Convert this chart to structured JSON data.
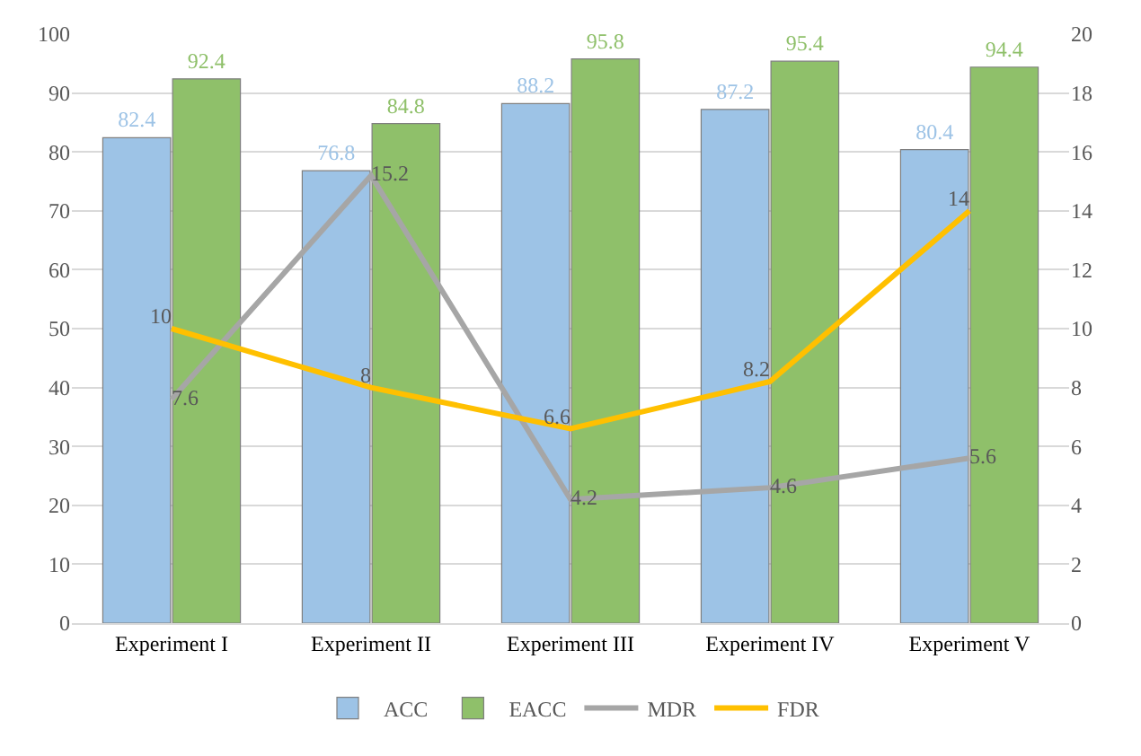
{
  "chart_data": {
    "type": "bar",
    "categories": [
      "Experiment I",
      "Experiment II",
      "Experiment III",
      "Experiment IV",
      "Experiment V"
    ],
    "series": [
      {
        "name": "ACC",
        "color": "#9dc3e6",
        "values": [
          82.4,
          76.8,
          88.2,
          87.2,
          80.4
        ]
      },
      {
        "name": "EACC",
        "color": "#8fc06a",
        "values": [
          92.4,
          84.8,
          95.8,
          95.4,
          94.4
        ]
      },
      {
        "name": "MDR",
        "type": "line",
        "axis": "y2",
        "color": "#a6a6a6",
        "values": [
          7.6,
          15.2,
          4.2,
          4.6,
          5.6
        ]
      },
      {
        "name": "FDR",
        "type": "line",
        "axis": "y2",
        "color": "#ffc000",
        "values": [
          10,
          8,
          6.6,
          8.2,
          14
        ]
      }
    ],
    "ylim": [
      0,
      100
    ],
    "yticks": [
      0,
      10,
      20,
      30,
      40,
      50,
      60,
      70,
      80,
      90,
      100
    ],
    "y2lim": [
      0,
      20
    ],
    "y2ticks": [
      0,
      2,
      4,
      6,
      8,
      10,
      12,
      14,
      16,
      18,
      20
    ],
    "grid": "y",
    "legend": "bottom",
    "data_labels": true,
    "marker": "none",
    "line_style": "solid"
  }
}
